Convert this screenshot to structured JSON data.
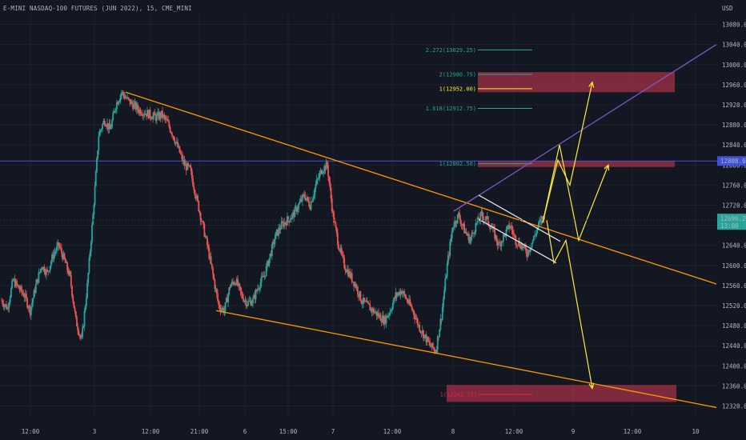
{
  "header": {
    "symbol": "E-MINI NASDAQ-100 FUTURES (JUN 2022), 15, CME_MINI",
    "currency": "USD"
  },
  "colors": {
    "background": "#131722",
    "grid": "#1e222d",
    "up": "#26a69a",
    "down": "#ef5350",
    "orange": "#ff9800",
    "yellow": "#ffeb3b",
    "purple": "#7e57c2",
    "blue": "#3f51d9",
    "white": "#e0e3eb",
    "zone": "#a83246",
    "fib_teal": "#2ba68e",
    "fib_red": "#e91e63"
  },
  "chart_data": {
    "type": "candlestick",
    "ylim": [
      12300,
      13100
    ],
    "y_ticks": [
      "13080.00",
      "13040.00",
      "13000.00",
      "12960.00",
      "12920.00",
      "12880.00",
      "12840.00",
      "12800.00",
      "12760.00",
      "12720.00",
      "12680.00",
      "12640.00",
      "12600.00",
      "12560.00",
      "12520.00",
      "12480.00",
      "12440.00",
      "12400.00",
      "12360.00",
      "12320.00"
    ],
    "x_ticks": [
      "12:00",
      "3",
      "12:00",
      "21:00",
      "6",
      "15:00",
      "7",
      "12:00",
      "8",
      "12:00",
      "9",
      "12:00",
      "10"
    ],
    "price_label": {
      "value": "12690.25",
      "countdown": "13:00"
    },
    "hline_label": "12808.00",
    "fib_levels": [
      {
        "label": "2.272(13029.25)",
        "value": 13029.25,
        "color": "teal"
      },
      {
        "label": "2(12980.75)",
        "value": 12980.75,
        "color": "teal"
      },
      {
        "label": "1(12952.00)",
        "value": 12952.0,
        "color": "yellow"
      },
      {
        "label": "1.618(12912.75)",
        "value": 12912.75,
        "color": "teal"
      },
      {
        "label": "1(12802.50)",
        "value": 12802.5,
        "color": "teal"
      },
      {
        "label": "1(12342.75)",
        "value": 12342.75,
        "color": "red"
      }
    ],
    "zones": [
      {
        "top": 12985,
        "bottom": 12945
      },
      {
        "top": 12808,
        "bottom": 12796
      },
      {
        "top": 12362,
        "bottom": 12328
      }
    ],
    "price_path": [
      12530,
      12515,
      12570,
      12555,
      12540,
      12510,
      12560,
      12600,
      12585,
      12620,
      12640,
      12610,
      12575,
      12490,
      12450,
      12560,
      12700,
      12860,
      12890,
      12870,
      12920,
      12945,
      12930,
      12920,
      12910,
      12905,
      12900,
      12895,
      12900,
      12885,
      12860,
      12830,
      12800,
      12790,
      12740,
      12690,
      12640,
      12580,
      12520,
      12510,
      12560,
      12570,
      12540,
      12525,
      12530,
      12560,
      12580,
      12620,
      12660,
      12680,
      12690,
      12700,
      12720,
      12740,
      12720,
      12760,
      12790,
      12800,
      12700,
      12640,
      12600,
      12580,
      12560,
      12530,
      12520,
      12510,
      12500,
      12490,
      12510,
      12540,
      12550,
      12530,
      12510,
      12480,
      12460,
      12440,
      12430,
      12500,
      12600,
      12680,
      12700,
      12670,
      12650,
      12680,
      12700,
      12690,
      12670,
      12640,
      12660,
      12680,
      12650,
      12640,
      12625,
      12650,
      12680,
      12700
    ],
    "lines": [
      {
        "name": "upper-orange-trendline",
        "color": "orange",
        "points": [
          [
            157,
            12945
          ],
          [
            895,
            12563
          ]
        ]
      },
      {
        "name": "lower-orange-trendline",
        "color": "orange",
        "points": [
          [
            270,
            12510
          ],
          [
            895,
            12317
          ]
        ]
      },
      {
        "name": "purple-channel-line",
        "color": "purple",
        "points": [
          [
            567,
            12708
          ],
          [
            895,
            13040
          ]
        ]
      },
      {
        "name": "white-flag-upper",
        "color": "white",
        "points": [
          [
            598,
            12740
          ],
          [
            700,
            12648
          ]
        ]
      },
      {
        "name": "white-flag-lower",
        "color": "white",
        "points": [
          [
            598,
            12692
          ],
          [
            695,
            12605
          ]
        ]
      }
    ],
    "arrows": [
      {
        "name": "yellow-path-1",
        "points": [
          [
            678,
            12685
          ],
          [
            697,
            12810
          ],
          [
            712,
            12760
          ],
          [
            740,
            12965
          ]
        ]
      },
      {
        "name": "yellow-path-2",
        "points": [
          [
            678,
            12685
          ],
          [
            699,
            12840
          ],
          [
            723,
            12650
          ],
          [
            760,
            12800
          ]
        ]
      },
      {
        "name": "yellow-path-3",
        "points": [
          [
            683,
            12690
          ],
          [
            692,
            12605
          ],
          [
            707,
            12650
          ],
          [
            740,
            12355
          ]
        ]
      }
    ]
  }
}
